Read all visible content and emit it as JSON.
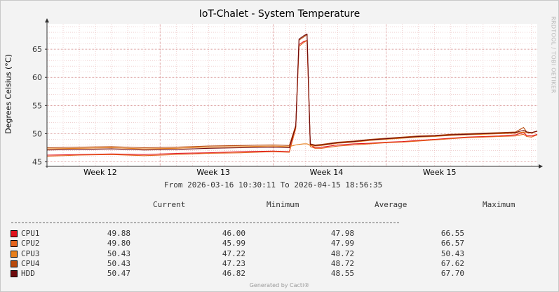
{
  "chart_data": {
    "type": "line",
    "title": "IoT-Chalet - System Temperature",
    "ylabel": "Degrees Celsius (°C)",
    "watermark": "RRDTOOL / TOBI OETIKER",
    "ylim": [
      44.2,
      69.5
    ],
    "yticks": [
      45,
      50,
      55,
      60,
      65
    ],
    "xlim": [
      0,
      30.35
    ],
    "xticks": [
      {
        "label": "Week 12",
        "x": 3.3
      },
      {
        "label": "Week 13",
        "x": 10.3
      },
      {
        "label": "Week 14",
        "x": 17.3
      },
      {
        "label": "Week 15",
        "x": 24.3
      }
    ],
    "grid": true,
    "range_text": "From 2026-03-16 10:30:11 To 2026-04-15 18:56:35",
    "columns": [
      "Current",
      "Minimum",
      "Average",
      "Maximum"
    ],
    "series": [
      {
        "name": "CPU1",
        "color": "#e0121c",
        "current": "49.88",
        "minimum": "46.00",
        "average": "47.98",
        "maximum": "66.55",
        "x": [
          0,
          2,
          4,
          6,
          8,
          10,
          12,
          14,
          15,
          15.4,
          15.6,
          15.9,
          16.1,
          16.3,
          16.6,
          17,
          18,
          19,
          20,
          21,
          22,
          23,
          24,
          25,
          26,
          27,
          28,
          29,
          29.5,
          29.7,
          30,
          30.35
        ],
        "y": [
          46.2,
          46.3,
          46.4,
          46.3,
          46.5,
          46.6,
          46.8,
          46.9,
          46.8,
          51.2,
          65.8,
          66.4,
          66.55,
          48.0,
          47.5,
          47.6,
          48.0,
          48.2,
          48.3,
          48.5,
          48.6,
          48.8,
          49.0,
          49.2,
          49.4,
          49.5,
          49.6,
          49.8,
          50.2,
          49.7,
          49.6,
          49.88
        ]
      },
      {
        "name": "CPU2",
        "color": "#e6641c",
        "current": "49.80",
        "minimum": "45.99",
        "average": "47.99",
        "maximum": "66.57",
        "x": [
          0,
          2,
          4,
          6,
          8,
          10,
          12,
          14,
          15,
          15.4,
          15.6,
          15.9,
          16.1,
          16.3,
          16.6,
          17,
          18,
          19,
          20,
          21,
          22,
          23,
          24,
          25,
          26,
          27,
          28,
          29,
          29.5,
          29.7,
          30,
          30.35
        ],
        "y": [
          46.0,
          46.2,
          46.3,
          46.1,
          46.3,
          46.5,
          46.6,
          46.8,
          46.7,
          50.9,
          65.5,
          66.2,
          66.57,
          47.7,
          47.4,
          47.4,
          47.8,
          48.0,
          48.2,
          48.4,
          48.5,
          48.7,
          48.9,
          49.1,
          49.3,
          49.4,
          49.5,
          49.6,
          49.9,
          49.5,
          49.4,
          49.8
        ]
      },
      {
        "name": "CPU3",
        "color": "#e87f1c",
        "current": "50.43",
        "minimum": "47.22",
        "average": "48.72",
        "maximum": "50.43",
        "x": [
          0,
          2,
          4,
          6,
          8,
          10,
          12,
          14,
          15,
          15.4,
          15.6,
          15.9,
          16.1,
          16.3,
          16.6,
          17,
          18,
          19,
          20,
          21,
          22,
          23,
          24,
          25,
          26,
          27,
          28,
          29,
          29.5,
          29.7,
          30,
          30.35
        ],
        "y": [
          47.3,
          47.4,
          47.5,
          47.3,
          47.4,
          47.6,
          47.7,
          47.8,
          47.7,
          48.0,
          48.1,
          48.2,
          48.2,
          47.9,
          47.8,
          47.9,
          48.3,
          48.5,
          48.8,
          49.0,
          49.2,
          49.4,
          49.5,
          49.7,
          49.8,
          49.9,
          50.0,
          50.1,
          50.3,
          50.2,
          50.1,
          50.43
        ]
      },
      {
        "name": "CPU4",
        "color": "#b84a0c",
        "current": "50.43",
        "minimum": "47.23",
        "average": "48.72",
        "maximum": "67.62",
        "x": [
          0,
          2,
          4,
          6,
          8,
          10,
          12,
          14,
          15,
          15.4,
          15.6,
          15.9,
          16.1,
          16.3,
          16.6,
          17,
          18,
          19,
          20,
          21,
          22,
          23,
          24,
          25,
          26,
          27,
          28,
          29,
          29.5,
          29.7,
          30,
          30.35
        ],
        "y": [
          47.5,
          47.6,
          47.7,
          47.5,
          47.6,
          47.8,
          47.9,
          48.0,
          47.9,
          51.5,
          66.6,
          67.2,
          67.62,
          48.2,
          48.0,
          48.1,
          48.5,
          48.7,
          49.0,
          49.2,
          49.4,
          49.6,
          49.7,
          49.9,
          50.0,
          50.1,
          50.2,
          50.3,
          51.1,
          50.3,
          50.2,
          50.43
        ]
      },
      {
        "name": "HDD",
        "color": "#6e0a0c",
        "current": "50.47",
        "minimum": "46.82",
        "average": "48.55",
        "maximum": "67.70",
        "x": [
          0,
          2,
          4,
          6,
          8,
          10,
          12,
          14,
          15,
          15.4,
          15.6,
          15.9,
          16.1,
          16.3,
          16.6,
          17,
          18,
          19,
          20,
          21,
          22,
          23,
          24,
          25,
          26,
          27,
          28,
          29,
          29.5,
          29.7,
          30,
          30.35
        ],
        "y": [
          47.1,
          47.2,
          47.3,
          47.1,
          47.2,
          47.4,
          47.5,
          47.6,
          47.5,
          51.3,
          66.8,
          67.4,
          67.7,
          48.1,
          47.9,
          48.0,
          48.4,
          48.6,
          48.9,
          49.1,
          49.3,
          49.5,
          49.6,
          49.8,
          49.9,
          50.0,
          50.1,
          50.2,
          50.6,
          50.3,
          50.2,
          50.47
        ]
      }
    ]
  },
  "footer": "Generated by Cacti®"
}
